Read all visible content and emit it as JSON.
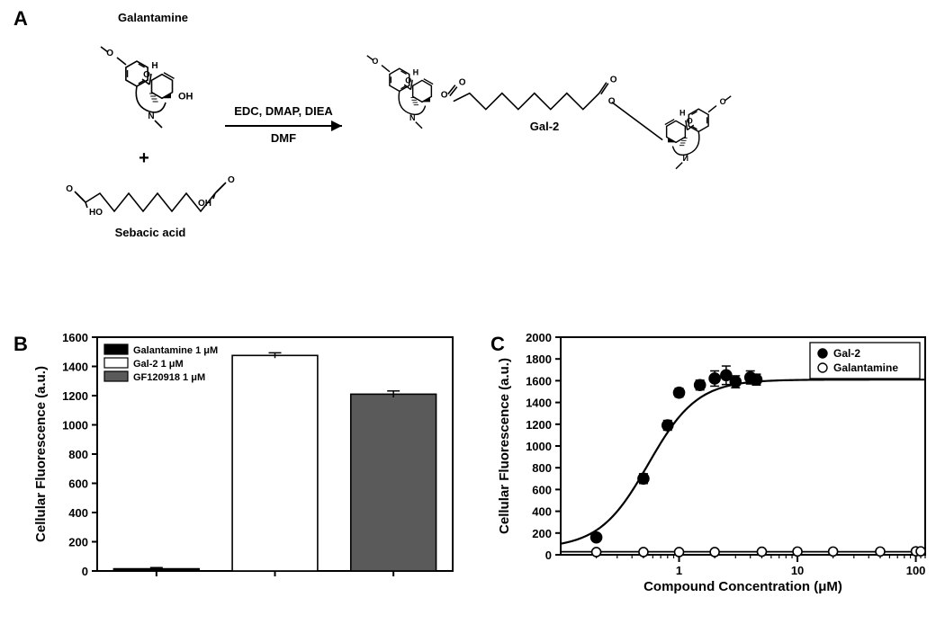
{
  "panel_labels": {
    "A": "A",
    "B": "B",
    "C": "C"
  },
  "panelA": {
    "title_top": "Galantamine",
    "title_bottom": "Sebacic acid",
    "product_label": "Gal-2",
    "reagents_line1": "EDC, DMAP, DIEA",
    "reagents_line2": "DMF",
    "plus": "+",
    "atom_label_O": "O",
    "atom_label_H": "H",
    "atom_label_OH": "OH",
    "atom_label_N": "N",
    "atom_label_HO": "HO",
    "colors": {
      "stroke": "#000000",
      "text": "#000000",
      "bg": "#ffffff"
    },
    "font": {
      "name_pt": 13,
      "atom_pt": 11,
      "reagent_pt": 13,
      "bold": 700
    }
  },
  "panelB": {
    "type": "bar",
    "ylabel": "Cellular Fluorescence (a.u.)",
    "ylim": [
      0,
      1600
    ],
    "ytick_step": 200,
    "categories": [
      "Galantamine 1 μM",
      "Gal-2 1 μM",
      "GF120918 1 μM"
    ],
    "values": [
      15,
      1475,
      1210
    ],
    "errors": [
      8,
      18,
      22
    ],
    "bar_fill": [
      "#000000",
      "#ffffff",
      "#5a5a5a"
    ],
    "bar_stroke": "#000000",
    "bar_width": 0.72,
    "axis_stroke": "#000000",
    "axis_width": 2,
    "background_color": "#ffffff",
    "tick_label_fontsize": 13,
    "ylabel_fontsize": 15,
    "legend": {
      "fontsize": 11,
      "swatch_w": 26,
      "swatch_h": 11,
      "stroke": "#000000"
    }
  },
  "panelC": {
    "type": "dose_response_logx",
    "xlabel": "Compound Concentration (μM)",
    "ylabel": "Cellular Fluorescence (a.u.)",
    "xlim": [
      0.1,
      120
    ],
    "xticks_major": [
      1,
      10,
      100
    ],
    "xticklabels_major": [
      "1",
      "10",
      "100"
    ],
    "xticks_minor": [
      0.2,
      0.3,
      0.4,
      0.5,
      0.6,
      0.7,
      0.8,
      0.9,
      2,
      3,
      4,
      5,
      6,
      7,
      8,
      9,
      20,
      30,
      40,
      50,
      60,
      70,
      80,
      90,
      110,
      120
    ],
    "ylim": [
      0,
      2000
    ],
    "ytick_step": 200,
    "yticks_major_label_step": 200,
    "legend": [
      {
        "label": "Gal-2",
        "marker": "filled-circle",
        "color": "#000000"
      },
      {
        "label": "Galantamine",
        "marker": "open-circle",
        "color": "#000000"
      }
    ],
    "series": {
      "gal2": {
        "marker": "filled-circle",
        "marker_size": 6,
        "color": "#000000",
        "points": [
          {
            "x": 0.2,
            "y": 160,
            "ey": 30
          },
          {
            "x": 0.5,
            "y": 700,
            "ey": 45
          },
          {
            "x": 0.8,
            "y": 1190,
            "ey": 45
          },
          {
            "x": 1.0,
            "y": 1490,
            "ey": 40
          },
          {
            "x": 1.5,
            "y": 1560,
            "ey": 45
          },
          {
            "x": 2.0,
            "y": 1620,
            "ey": 70
          },
          {
            "x": 2.5,
            "y": 1650,
            "ey": 85
          },
          {
            "x": 3.0,
            "y": 1590,
            "ey": 55
          },
          {
            "x": 4.0,
            "y": 1630,
            "ey": 60
          },
          {
            "x": 4.5,
            "y": 1610,
            "ey": 50
          }
        ],
        "fit": {
          "bottom": 60,
          "top": 1610,
          "ec50": 0.55,
          "hill": 2.1
        }
      },
      "galantamine": {
        "marker": "open-circle",
        "marker_size": 5,
        "color": "#000000",
        "points": [
          {
            "x": 0.2,
            "y": 25,
            "ey": 10
          },
          {
            "x": 0.5,
            "y": 25,
            "ey": 10
          },
          {
            "x": 1.0,
            "y": 25,
            "ey": 10
          },
          {
            "x": 2.0,
            "y": 25,
            "ey": 10
          },
          {
            "x": 5.0,
            "y": 28,
            "ey": 10
          },
          {
            "x": 10.0,
            "y": 30,
            "ey": 12
          },
          {
            "x": 20.0,
            "y": 30,
            "ey": 12
          },
          {
            "x": 50.0,
            "y": 30,
            "ey": 12
          },
          {
            "x": 100.0,
            "y": 32,
            "ey": 14
          },
          {
            "x": 110.0,
            "y": 32,
            "ey": 14
          }
        ],
        "flat_y": 28
      }
    },
    "axis_stroke": "#000000",
    "axis_width": 2,
    "background_color": "#ffffff",
    "tick_label_fontsize": 13,
    "axis_label_fontsize": 15,
    "legend_fontsize": 12,
    "fit_line_width": 2.2
  }
}
